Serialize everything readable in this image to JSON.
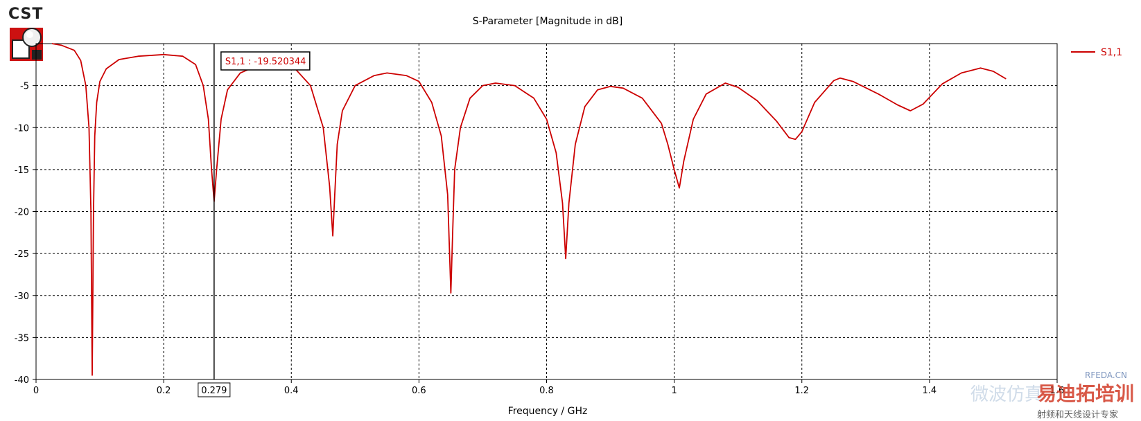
{
  "app": {
    "logo_text": "CST"
  },
  "watermark": {
    "site": "RFEDA.CN",
    "brand": "易迪拓培训",
    "slogan": "射频和天线设计专家",
    "faded_text": "微波仿真"
  },
  "colors": {
    "curve": "#cc0000",
    "grid": "#000000",
    "marker": "#000000",
    "logo_red": "#cc1111",
    "watermark_red": "#d23c28"
  },
  "chart_data": {
    "type": "line",
    "title": "S-Parameter [Magnitude in dB]",
    "xlabel": "Frequency / GHz",
    "ylabel": "",
    "xlim": [
      0,
      1.6
    ],
    "ylim": [
      -40,
      0
    ],
    "xticks": [
      "0",
      "0.2",
      "0.4",
      "0.6",
      "0.8",
      "1",
      "1.2",
      "1.4",
      "1.6"
    ],
    "yticks": [
      "-5",
      "-10",
      "-15",
      "-20",
      "-25",
      "-30",
      "-35",
      "-40"
    ],
    "grid": true,
    "grid_style": "dashed",
    "legend_position": "top-right",
    "series": [
      {
        "name": "S1,1",
        "x": [
          0.025,
          0.04,
          0.06,
          0.07,
          0.078,
          0.083,
          0.086,
          0.088,
          0.09,
          0.092,
          0.095,
          0.1,
          0.11,
          0.13,
          0.16,
          0.2,
          0.23,
          0.25,
          0.262,
          0.27,
          0.275,
          0.279,
          0.283,
          0.29,
          0.3,
          0.32,
          0.35,
          0.4,
          0.43,
          0.45,
          0.46,
          0.465,
          0.468,
          0.472,
          0.48,
          0.5,
          0.53,
          0.55,
          0.58,
          0.6,
          0.62,
          0.635,
          0.645,
          0.65,
          0.653,
          0.656,
          0.665,
          0.68,
          0.7,
          0.72,
          0.75,
          0.78,
          0.8,
          0.815,
          0.825,
          0.83,
          0.835,
          0.845,
          0.86,
          0.88,
          0.9,
          0.92,
          0.95,
          0.98,
          0.99,
          1.0,
          1.008,
          1.015,
          1.03,
          1.05,
          1.08,
          1.1,
          1.13,
          1.16,
          1.18,
          1.19,
          1.2,
          1.22,
          1.25,
          1.26,
          1.28,
          1.32,
          1.35,
          1.37,
          1.39,
          1.42,
          1.45,
          1.48,
          1.5,
          1.52
        ],
        "values": [
          0,
          -0.2,
          -0.8,
          -2.0,
          -5.0,
          -10.0,
          -20.0,
          -39.5,
          -20.0,
          -11.0,
          -7.0,
          -4.5,
          -3.0,
          -1.9,
          -1.5,
          -1.3,
          -1.5,
          -2.5,
          -5.0,
          -9.0,
          -15.0,
          -18.8,
          -15.0,
          -9.0,
          -5.5,
          -3.5,
          -2.5,
          -2.5,
          -5.0,
          -10.0,
          -17.0,
          -22.9,
          -18.0,
          -12.0,
          -8.0,
          -5.0,
          -3.8,
          -3.5,
          -3.8,
          -4.5,
          -7.0,
          -11.0,
          -18.0,
          -29.7,
          -22.0,
          -15.0,
          -10.0,
          -6.5,
          -5.0,
          -4.7,
          -5.0,
          -6.5,
          -9.0,
          -13.0,
          -19.0,
          -25.6,
          -19.0,
          -12.0,
          -7.5,
          -5.5,
          -5.1,
          -5.3,
          -6.5,
          -9.5,
          -12.0,
          -15.0,
          -17.2,
          -14.0,
          -9.0,
          -6.0,
          -4.7,
          -5.2,
          -6.8,
          -9.2,
          -11.2,
          -11.4,
          -10.5,
          -7.0,
          -4.4,
          -4.1,
          -4.5,
          -6.0,
          -7.3,
          -8.0,
          -7.2,
          -4.8,
          -3.5,
          -2.9,
          -3.3,
          -4.2
        ]
      }
    ],
    "marker": {
      "x": 0.279,
      "label": "S1,1 : -19.520344",
      "x_label": "0.279"
    }
  }
}
